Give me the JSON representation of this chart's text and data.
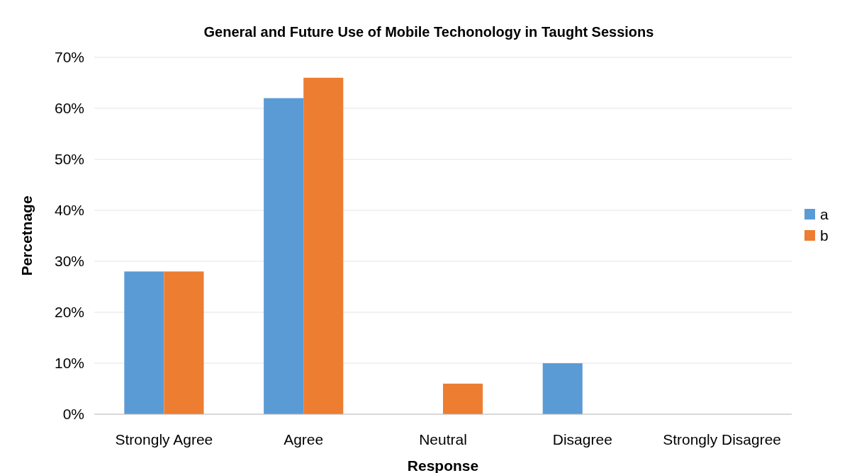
{
  "chart_data": {
    "type": "bar",
    "title": "General and Future Use of Mobile Techonology in Taught Sessions",
    "xlabel": "Response",
    "ylabel": "Percetnage",
    "categories": [
      "Strongly Agree",
      "Agree",
      "Neutral",
      "Disagree",
      "Strongly Disagree"
    ],
    "series": [
      {
        "name": "a",
        "color": "#5b9bd5",
        "values": [
          28,
          62,
          0,
          10,
          0
        ]
      },
      {
        "name": "b",
        "color": "#ed7d31",
        "values": [
          28,
          66,
          6,
          0,
          0
        ]
      }
    ],
    "ylim": [
      0,
      70
    ],
    "yticks": [
      {
        "value": 0,
        "label": "0%"
      },
      {
        "value": 10,
        "label": "10%"
      },
      {
        "value": 20,
        "label": "20%"
      },
      {
        "value": 30,
        "label": "30%"
      },
      {
        "value": 40,
        "label": "40%"
      },
      {
        "value": 50,
        "label": "50%"
      },
      {
        "value": 60,
        "label": "60%"
      },
      {
        "value": 70,
        "label": "70%"
      }
    ],
    "grid": "y",
    "legend": "right"
  }
}
